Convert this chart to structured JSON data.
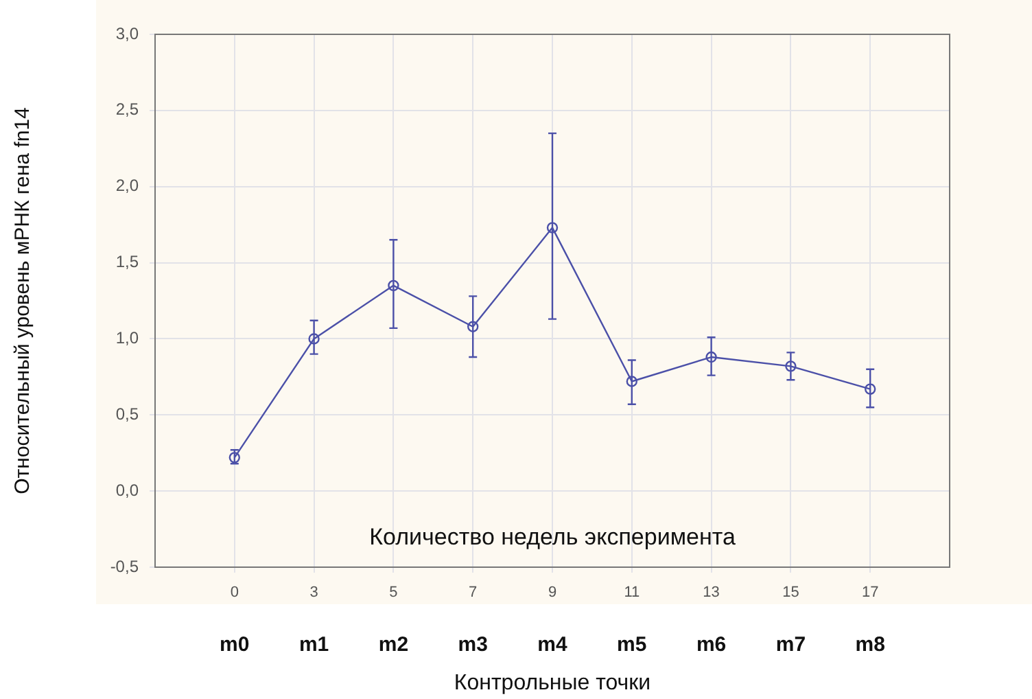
{
  "chart_data": {
    "type": "line",
    "xlabel": "Контрольные точки",
    "ylabel": "Относительный уровень мРНК гена fn14",
    "categories": [
      "0",
      "3",
      "5",
      "7",
      "9",
      "11",
      "13",
      "15",
      "17"
    ],
    "series": [
      {
        "color": "#4b50a8",
        "values": [
          0.22,
          1.0,
          1.35,
          1.08,
          1.73,
          0.72,
          0.88,
          0.82,
          0.67
        ],
        "errors": [
          [
            0.18,
            0.27
          ],
          [
            0.9,
            1.12
          ],
          [
            1.07,
            1.65
          ],
          [
            0.88,
            1.28
          ],
          [
            1.13,
            2.35
          ],
          [
            0.57,
            0.86
          ],
          [
            0.76,
            1.01
          ],
          [
            0.73,
            0.91
          ],
          [
            0.55,
            0.8
          ]
        ]
      }
    ],
    "ylim": [
      -0.5,
      3
    ],
    "yticks": [
      {
        "value": -0.5,
        "label": "-0,5"
      },
      {
        "value": 0,
        "label": "0,0"
      },
      {
        "value": 0.5,
        "label": "0,5"
      },
      {
        "value": 1,
        "label": "1,0"
      },
      {
        "value": 1.5,
        "label": "1,5"
      },
      {
        "value": 2,
        "label": "2,0"
      },
      {
        "value": 2.5,
        "label": "2,5"
      },
      {
        "value": 3,
        "label": "3,0"
      }
    ],
    "grid": true,
    "legend": false,
    "marker": "circle",
    "line_style": "solid",
    "annotations": [
      "Количество недель эксперимента",
      "m0",
      "m1",
      "m2",
      "m3",
      "m4",
      "m5",
      "m6",
      "m7",
      "m8"
    ]
  }
}
